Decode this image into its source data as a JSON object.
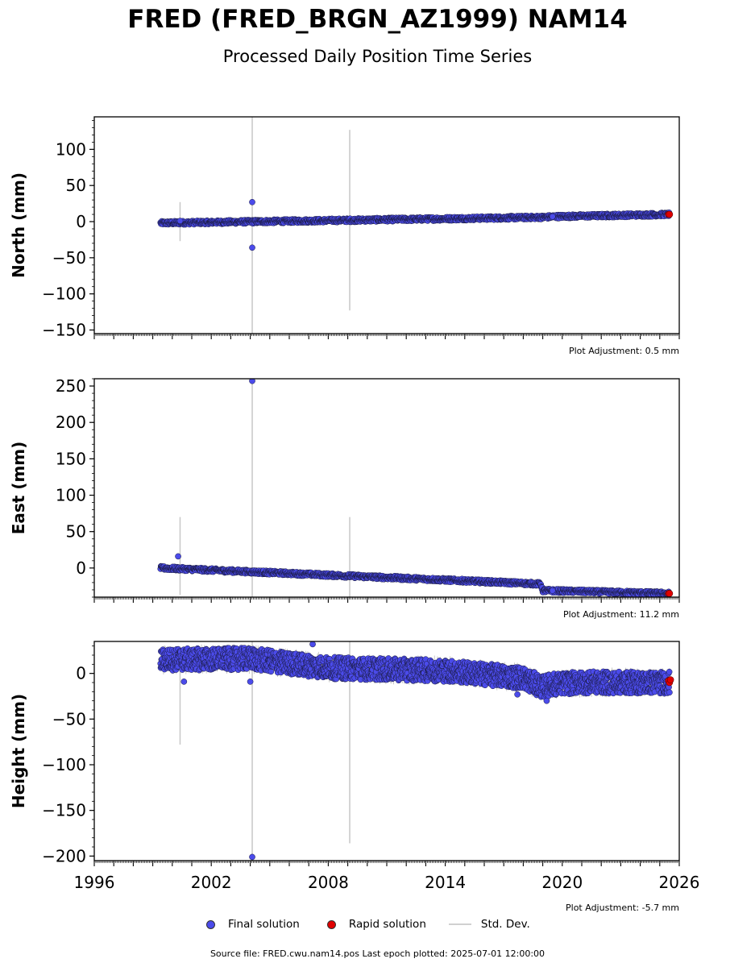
{
  "title": "FRED (FRED_BRGN_AZ1999) NAM14",
  "subtitle": "Processed Daily Position Time Series",
  "legend": {
    "final": "Final solution",
    "rapid": "Rapid solution",
    "std": "Std. Dev."
  },
  "footer": {
    "source": "Source file: FRED.cwu.nam14.pos",
    "last_epoch": "Last epoch plotted: 2025-07-01 12:00:00"
  },
  "colors": {
    "final": "#4b4bea",
    "rapid": "#e00000",
    "std_dev": "#c8c8c8",
    "marker_edge": "#1a1a40"
  },
  "chart_data": [
    {
      "type": "scatter",
      "ylabel": "North (mm)",
      "xlim": [
        1996,
        2026
      ],
      "ylim": [
        -155,
        145
      ],
      "yticks": [
        100,
        50,
        0,
        -50,
        -100,
        -150
      ],
      "adjustment": "Plot Adjustment: 0.5 mm",
      "trend": [
        [
          1999.4,
          -2
        ],
        [
          2019.0,
          6
        ],
        [
          2019.6,
          7
        ],
        [
          2025.5,
          10
        ]
      ],
      "scatter_width": 2.5,
      "outliers": [
        [
          2004.1,
          27
        ],
        [
          2004.1,
          -36
        ],
        [
          2000.4,
          1
        ],
        [
          2019.5,
          7
        ]
      ],
      "std_bars": [
        [
          2000.4,
          -27,
          27
        ],
        [
          2004.1,
          -155,
          145
        ],
        [
          2009.1,
          -123,
          127
        ]
      ],
      "rapid": [
        [
          2025.45,
          10
        ],
        [
          2025.5,
          10
        ]
      ]
    },
    {
      "type": "scatter",
      "ylabel": "East (mm)",
      "xlim": [
        1996,
        2026
      ],
      "ylim": [
        -40,
        260
      ],
      "yticks": [
        250,
        200,
        150,
        100,
        50,
        0
      ],
      "adjustment": "Plot Adjustment: 11.2 mm",
      "trend": [
        [
          1999.4,
          0
        ],
        [
          2018.9,
          -22
        ],
        [
          2019.0,
          -31
        ],
        [
          2025.5,
          -35
        ]
      ],
      "scatter_width": 2.5,
      "outliers": [
        [
          2004.1,
          257
        ],
        [
          2000.3,
          16
        ],
        [
          2019.5,
          -31
        ]
      ],
      "std_bars": [
        [
          2000.4,
          -37,
          70
        ],
        [
          2004.1,
          -40,
          260
        ],
        [
          2009.1,
          -40,
          70
        ]
      ],
      "rapid": [
        [
          2025.45,
          -35
        ],
        [
          2025.5,
          -35
        ]
      ]
    },
    {
      "type": "scatter",
      "ylabel": "Height (mm)",
      "xlim": [
        1996,
        2026
      ],
      "ylim": [
        -205,
        35
      ],
      "yticks": [
        0,
        -50,
        -100,
        -150,
        -200
      ],
      "xticks": [
        1996,
        2002,
        2008,
        2014,
        2020,
        2026
      ],
      "adjustment": "Plot Adjustment: -5.7 mm",
      "trend": [
        [
          1999.4,
          15
        ],
        [
          2004.0,
          16
        ],
        [
          2008.0,
          6
        ],
        [
          2014.0,
          3
        ],
        [
          2018.0,
          -5
        ],
        [
          2019.0,
          -15
        ],
        [
          2019.4,
          -12
        ],
        [
          2021.0,
          -10
        ],
        [
          2025.5,
          -10
        ]
      ],
      "scatter_width": 12,
      "outliers": [
        [
          2004.1,
          -201
        ],
        [
          2004.0,
          -9
        ],
        [
          2000.6,
          -9
        ],
        [
          2007.2,
          32
        ],
        [
          2017.7,
          -23
        ],
        [
          2019.2,
          -30
        ]
      ],
      "std_bars": [
        [
          2000.4,
          -78,
          28
        ],
        [
          2004.1,
          -205,
          35
        ],
        [
          2009.1,
          -186,
          35
        ]
      ],
      "rapid": [
        [
          2025.45,
          -8
        ],
        [
          2025.5,
          -10
        ],
        [
          2025.55,
          -7
        ]
      ]
    }
  ]
}
